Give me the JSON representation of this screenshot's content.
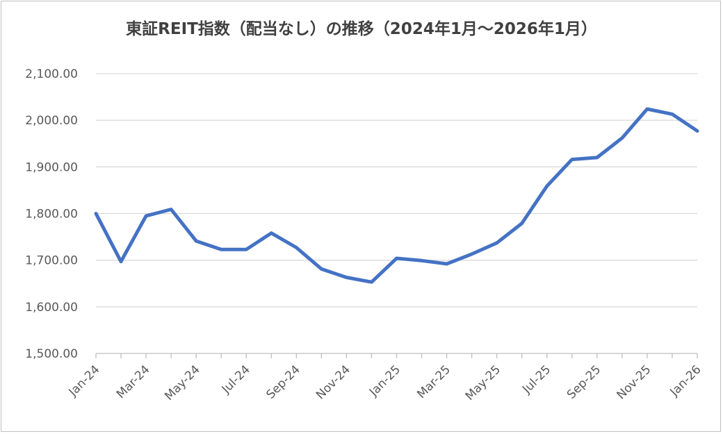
{
  "chart_data": {
    "type": "line",
    "title": "東証REIT指数（配当なし）の推移（2024年1月～2026年1月）",
    "xlabel": "",
    "ylabel": "",
    "ylim": [
      1500,
      2100
    ],
    "y_ticks": [
      "1,500.00",
      "1,600.00",
      "1,700.00",
      "1,800.00",
      "1,900.00",
      "2,000.00",
      "2,100.00"
    ],
    "x_tick_labels": [
      "Jan-24",
      "Mar-24",
      "May-24",
      "Jul-24",
      "Sep-24",
      "Nov-24",
      "Jan-25",
      "Mar-25",
      "May-25",
      "Jul-25",
      "Sep-25",
      "Nov-25",
      "Jan-26"
    ],
    "categories": [
      "Jan-24",
      "Feb-24",
      "Mar-24",
      "Apr-24",
      "May-24",
      "Jun-24",
      "Jul-24",
      "Aug-24",
      "Sep-24",
      "Oct-24",
      "Nov-24",
      "Dec-24",
      "Jan-25",
      "Feb-25",
      "Mar-25",
      "Apr-25",
      "May-25",
      "Jun-25",
      "Jul-25",
      "Aug-25",
      "Sep-25",
      "Oct-25",
      "Nov-25",
      "Dec-25",
      "Jan-26"
    ],
    "series": [
      {
        "color": "#4472c4",
        "values": [
          1800,
          1697,
          1795,
          1809,
          1741,
          1723,
          1723,
          1758,
          1727,
          1681,
          1663,
          1653,
          1704,
          1699,
          1692,
          1713,
          1737,
          1779,
          1859,
          1916,
          1920,
          1962,
          2024,
          2013,
          1977
        ]
      }
    ],
    "grid": true,
    "gridline_color": "#d9d9d9"
  }
}
